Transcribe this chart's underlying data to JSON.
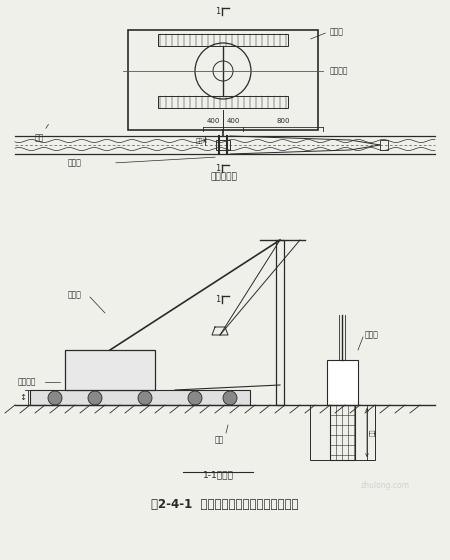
{
  "bg_color": "#f0f0eb",
  "line_color": "#2a2a2a",
  "title": "图2-4-1  抓斗与套管钻机相对位置示意图",
  "top_label": "平面示意图",
  "bottom_label": "1-1剖面图",
  "annotations_top_right": [
    "钻控站",
    "作业平台"
  ],
  "annotations_top_left": [
    "套管机",
    "元地"
  ],
  "dim_labels": [
    "400",
    "400",
    "800"
  ],
  "watermark": "zhulong.com"
}
